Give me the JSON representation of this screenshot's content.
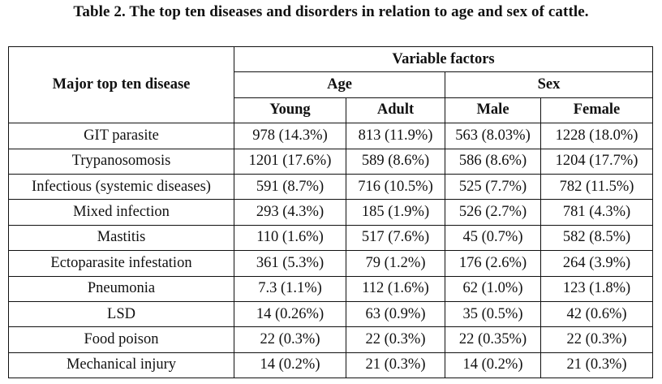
{
  "caption": "Table 2. The top ten diseases and disorders in relation to age and sex of cattle.",
  "header": {
    "row_label": "Major top ten disease",
    "group": "Variable factors",
    "age": "Age",
    "sex": "Sex",
    "young": "Young",
    "adult": "Adult",
    "male": "Male",
    "female": "Female"
  },
  "rows": [
    {
      "disease": "GIT parasite",
      "young": "978 (14.3%)",
      "adult": "813 (11.9%)",
      "male": "563 (8.03%)",
      "female": "1228 (18.0%)"
    },
    {
      "disease": "Trypanosomosis",
      "young": "1201 (17.6%)",
      "adult": "589 (8.6%)",
      "male": "586 (8.6%)",
      "female": "1204 (17.7%)"
    },
    {
      "disease": "Infectious (systemic diseases)",
      "young": "591 (8.7%)",
      "adult": "716 (10.5%)",
      "male": "525 (7.7%)",
      "female": "782 (11.5%)"
    },
    {
      "disease": "Mixed infection",
      "young": "293 (4.3%)",
      "adult": "185 (1.9%)",
      "male": "526 (2.7%)",
      "female": "781 (4.3%)"
    },
    {
      "disease": "Mastitis",
      "young": "110 (1.6%)",
      "adult": "517 (7.6%)",
      "male": "45 (0.7%)",
      "female": "582 (8.5%)"
    },
    {
      "disease": "Ectoparasite infestation",
      "young": "361 (5.3%)",
      "adult": "79 (1.2%)",
      "male": "176 (2.6%)",
      "female": "264 (3.9%)"
    },
    {
      "disease": "Pneumonia",
      "young": "7.3 (1.1%)",
      "adult": "112 (1.6%)",
      "male": "62 (1.0%)",
      "female": "123 (1.8%)"
    },
    {
      "disease": "LSD",
      "young": "14 (0.26%)",
      "adult": "63 (0.9%)",
      "male": "35 (0.5%)",
      "female": "42 (0.6%)"
    },
    {
      "disease": "Food poison",
      "young": "22 (0.3%)",
      "adult": "22 (0.3%)",
      "male": "22 (0.35%)",
      "female": "22 (0.3%)"
    },
    {
      "disease": "Mechanical injury",
      "young": "14 (0.2%)",
      "adult": "21 (0.3%)",
      "male": "14 (0.2%)",
      "female": "21 (0.3%)"
    }
  ]
}
